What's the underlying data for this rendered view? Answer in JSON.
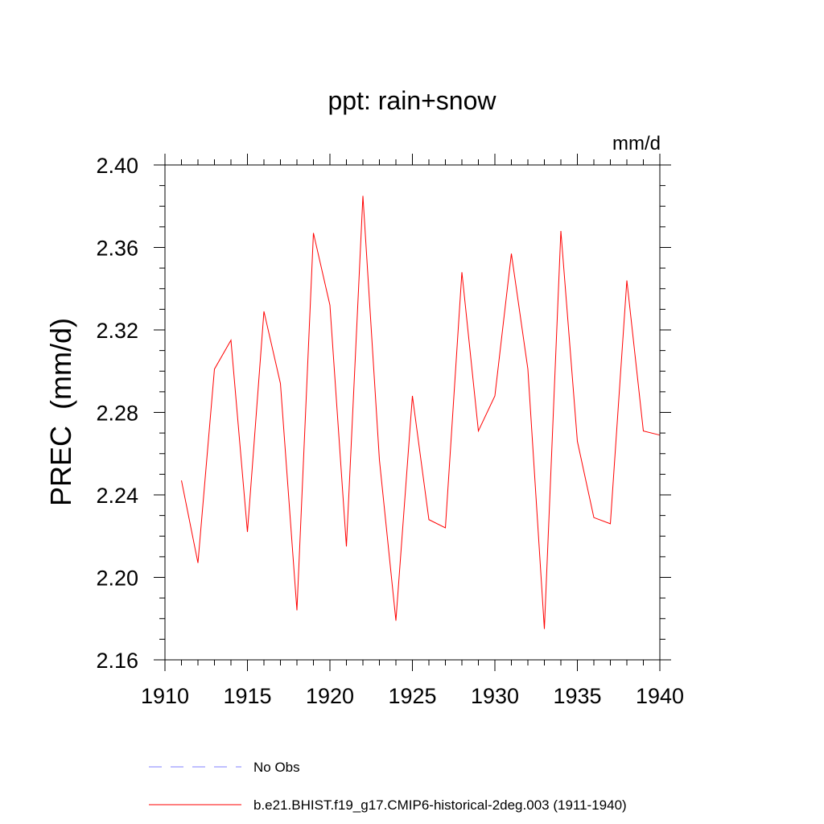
{
  "chart_data": {
    "type": "line",
    "title": "ppt: rain+snow",
    "units_label": "mm/d",
    "ylabel": "PREC  (mm/d)",
    "xlabel": "",
    "xlim": [
      1910,
      1940
    ],
    "ylim": [
      2.16,
      2.4
    ],
    "x_ticks": [
      1910,
      1915,
      1920,
      1925,
      1930,
      1935,
      1940
    ],
    "x_tick_labels": [
      "1910",
      "1915",
      "1920",
      "1925",
      "1930",
      "1935",
      "1940"
    ],
    "y_ticks": [
      2.16,
      2.2,
      2.24,
      2.28,
      2.32,
      2.36,
      2.4
    ],
    "y_tick_labels": [
      "2.16",
      "2.20",
      "2.24",
      "2.28",
      "2.32",
      "2.36",
      "2.40"
    ],
    "grid": false,
    "legend_position": "bottom",
    "series": [
      {
        "name": "b.e21.BHIST.f19_g17.CMIP6-historical-2deg.003 (1911-1940)",
        "color": "#ff0000",
        "style": "solid",
        "x": [
          1911,
          1912,
          1913,
          1914,
          1915,
          1916,
          1917,
          1918,
          1919,
          1920,
          1921,
          1922,
          1923,
          1924,
          1925,
          1926,
          1927,
          1928,
          1929,
          1930,
          1931,
          1932,
          1933,
          1934,
          1935,
          1936,
          1937,
          1938,
          1939,
          1940
        ],
        "values": [
          2.247,
          2.207,
          2.301,
          2.315,
          2.222,
          2.329,
          2.294,
          2.184,
          2.367,
          2.332,
          2.215,
          2.385,
          2.257,
          2.179,
          2.288,
          2.228,
          2.224,
          2.348,
          2.271,
          2.288,
          2.357,
          2.301,
          2.175,
          2.368,
          2.266,
          2.229,
          2.226,
          2.344,
          2.271,
          2.269
        ]
      }
    ],
    "legend": [
      {
        "label": "No Obs",
        "color": "#8080ff",
        "style": "dashed"
      },
      {
        "label": "b.e21.BHIST.f19_g17.CMIP6-historical-2deg.003 (1911-1940)",
        "color": "#ff0000",
        "style": "solid"
      }
    ]
  }
}
